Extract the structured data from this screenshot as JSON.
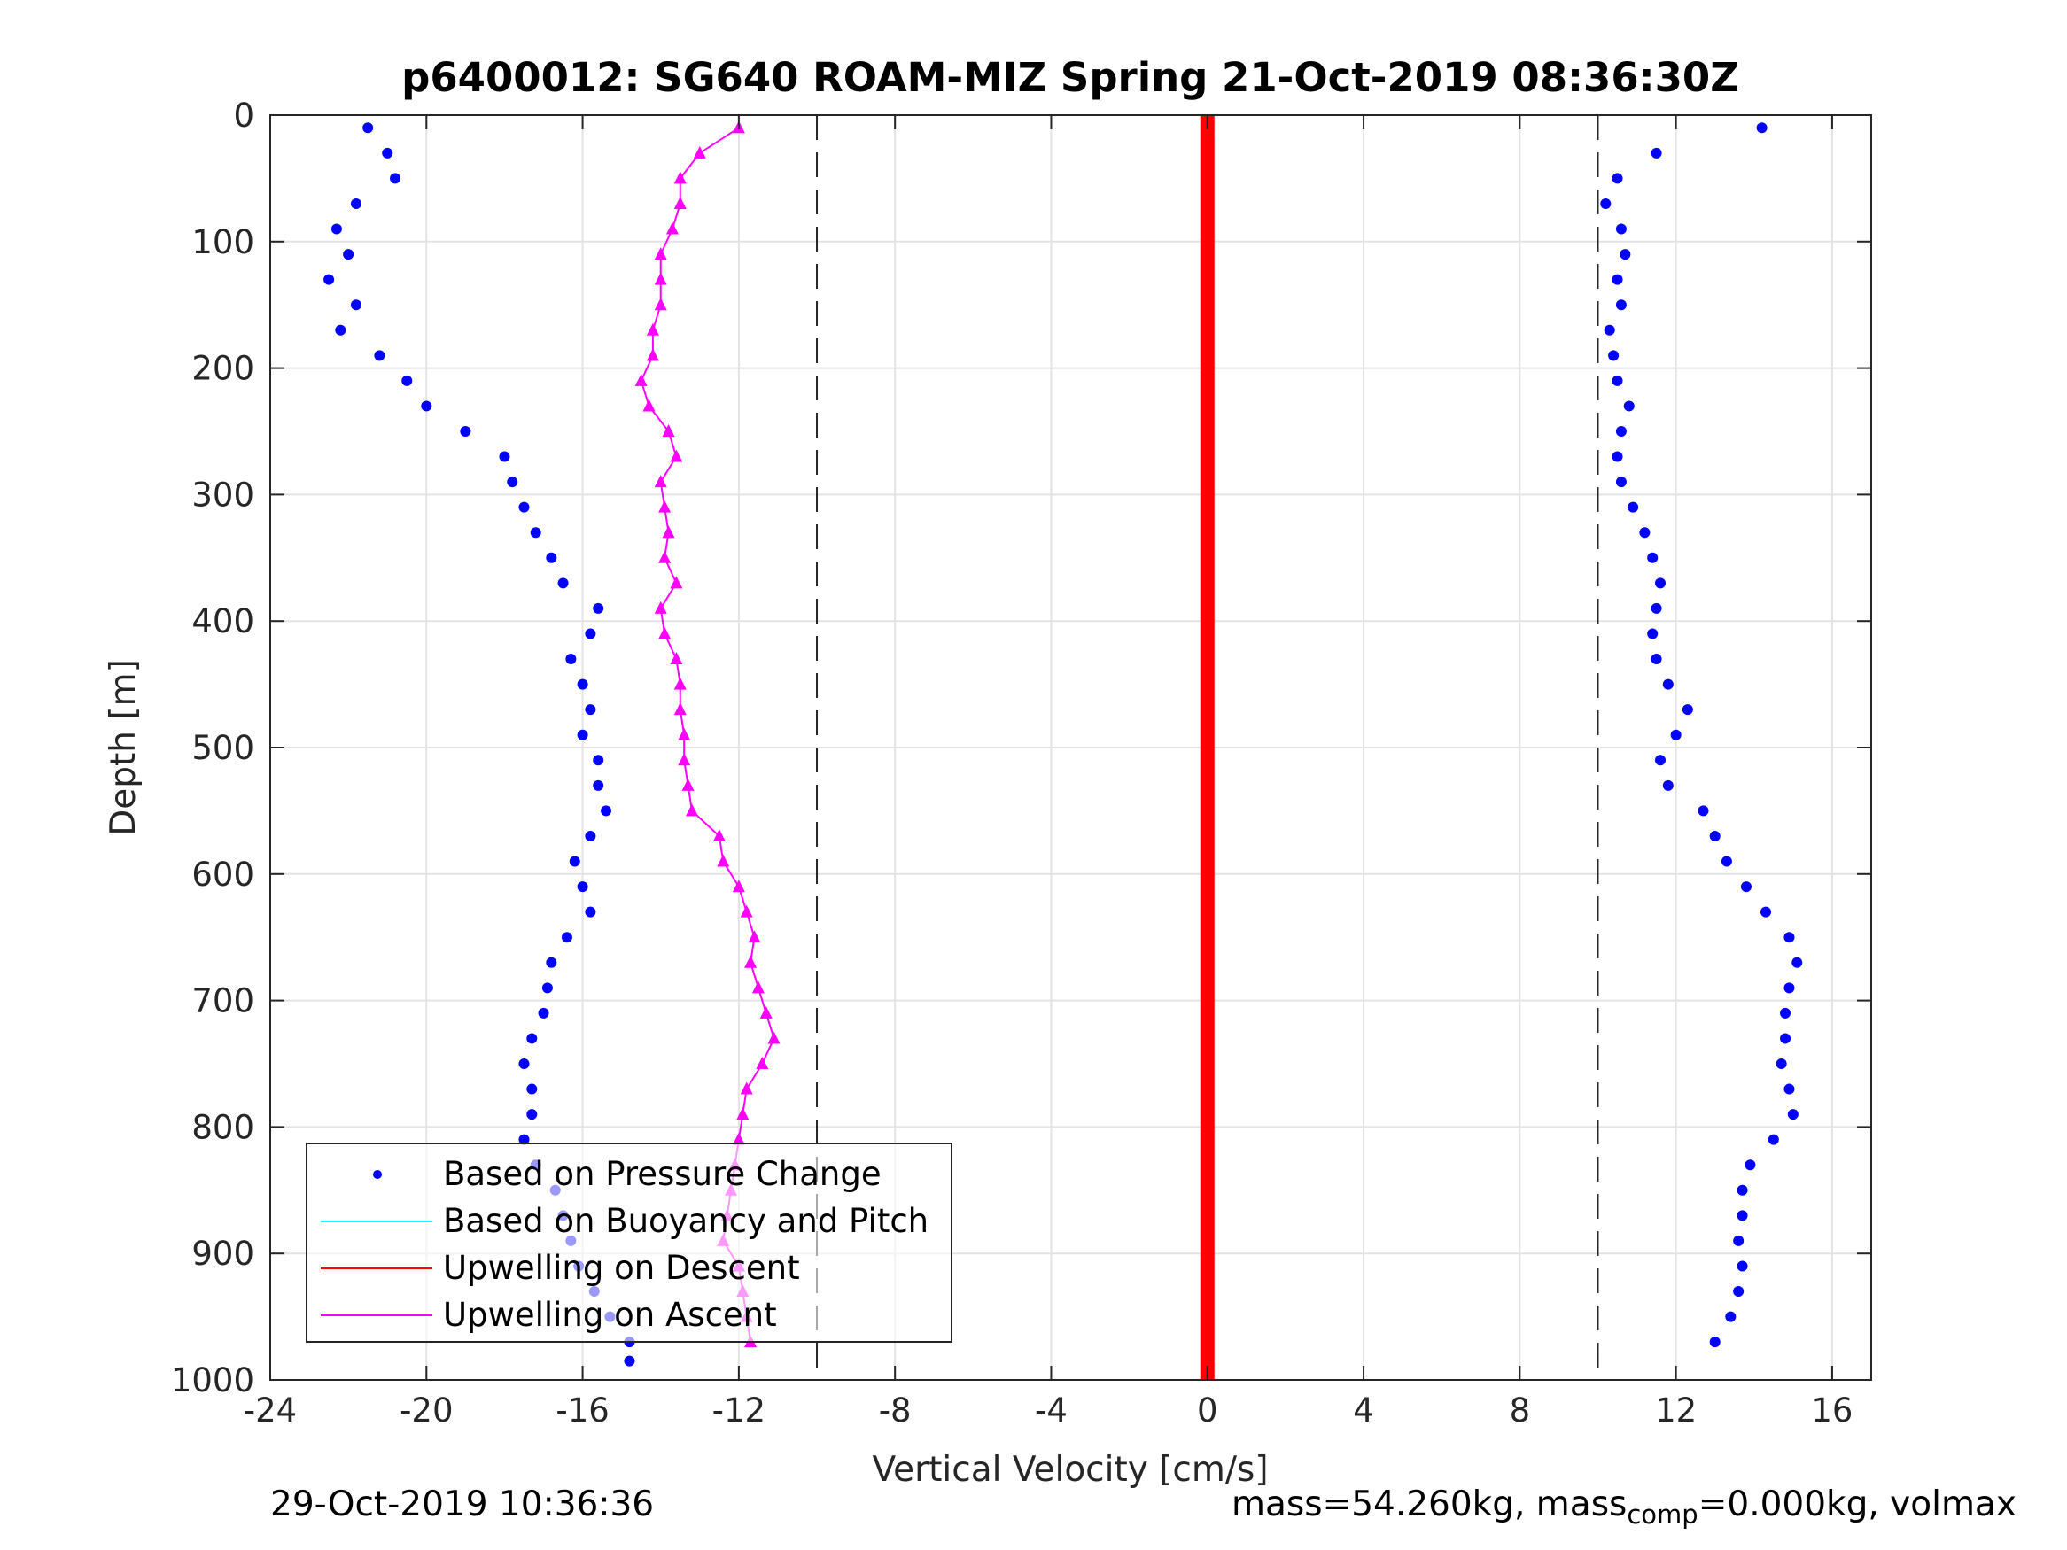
{
  "chart_data": {
    "type": "scatter",
    "title": "p6400012: SG640 ROAM-MIZ Spring 21-Oct-2019 08:36:30Z",
    "xlabel": "Vertical Velocity [cm/s]",
    "ylabel": "Depth [m]",
    "xlim": [
      -24,
      17
    ],
    "ylim": [
      0,
      1000
    ],
    "y_reversed": true,
    "x_ticks": [
      "-24",
      "-20",
      "-16",
      "-12",
      "-8",
      "-4",
      "0",
      "4",
      "8",
      "12",
      "16"
    ],
    "y_ticks": [
      "0",
      "100",
      "200",
      "300",
      "400",
      "500",
      "600",
      "700",
      "800",
      "900",
      "1000"
    ],
    "grid": true,
    "legend_position": "bottom-left",
    "reference_lines": [
      -10,
      10
    ],
    "colors": {
      "pressure": "#0000ff",
      "buoyancy": "#00ffff",
      "descent": "#ff0000",
      "ascent": "#ff00ff"
    },
    "legend": [
      {
        "label": "Based on Pressure Change",
        "marker": "dot",
        "color": "#0000ff"
      },
      {
        "label": "Based on Buoyancy and Pitch",
        "marker": "line",
        "color": "#00ffff"
      },
      {
        "label": "Upwelling on Descent",
        "marker": "line",
        "color": "#ff0000"
      },
      {
        "label": "Upwelling on Ascent",
        "marker": "line",
        "color": "#ff00ff"
      }
    ],
    "series": [
      {
        "name": "Based on Pressure Change (descent)",
        "depth": [
          10,
          30,
          50,
          70,
          90,
          110,
          130,
          150,
          170,
          190,
          210,
          230,
          250,
          270,
          290,
          310,
          330,
          350,
          370,
          390,
          410,
          430,
          450,
          470,
          490,
          510,
          530,
          550,
          570,
          590,
          610,
          630,
          650,
          670,
          690,
          710,
          730,
          750,
          770,
          790,
          810,
          830,
          850,
          870,
          890,
          910,
          930,
          950,
          970,
          985
        ],
        "velocity": [
          -21.5,
          -21.0,
          -20.8,
          -21.8,
          -22.3,
          -22.0,
          -22.5,
          -21.8,
          -22.2,
          -21.2,
          -20.5,
          -20.0,
          -19.0,
          -18.0,
          -17.8,
          -17.5,
          -17.2,
          -16.8,
          -16.5,
          -15.6,
          -15.8,
          -16.3,
          -16.0,
          -15.8,
          -16.0,
          -15.6,
          -15.6,
          -15.4,
          -15.8,
          -16.2,
          -16.0,
          -15.8,
          -16.4,
          -16.8,
          -16.9,
          -17.0,
          -17.3,
          -17.5,
          -17.3,
          -17.3,
          -17.5,
          -17.2,
          -16.7,
          -16.5,
          -16.3,
          -16.1,
          -15.7,
          -15.3,
          -14.8,
          -14.8
        ]
      },
      {
        "name": "Based on Pressure Change (ascent)",
        "depth": [
          10,
          30,
          50,
          70,
          90,
          110,
          130,
          150,
          170,
          190,
          210,
          230,
          250,
          270,
          290,
          310,
          330,
          350,
          370,
          390,
          410,
          430,
          450,
          470,
          490,
          510,
          530,
          550,
          570,
          590,
          610,
          630,
          650,
          670,
          690,
          710,
          730,
          750,
          770,
          790,
          810,
          830,
          850,
          870,
          890,
          910,
          930,
          950,
          970
        ],
        "velocity": [
          14.2,
          11.5,
          10.5,
          10.2,
          10.6,
          10.7,
          10.5,
          10.6,
          10.3,
          10.4,
          10.5,
          10.8,
          10.6,
          10.5,
          10.6,
          10.9,
          11.2,
          11.4,
          11.6,
          11.5,
          11.4,
          11.5,
          11.8,
          12.3,
          12.0,
          11.6,
          11.8,
          12.7,
          13.0,
          13.3,
          13.8,
          14.3,
          14.9,
          15.1,
          14.9,
          14.8,
          14.8,
          14.7,
          14.9,
          15.0,
          14.5,
          13.9,
          13.7,
          13.7,
          13.6,
          13.7,
          13.6,
          13.4,
          13.0
        ]
      },
      {
        "name": "Upwelling on Ascent",
        "depth": [
          10,
          30,
          50,
          70,
          90,
          110,
          130,
          150,
          170,
          190,
          210,
          230,
          250,
          270,
          290,
          310,
          330,
          350,
          370,
          390,
          410,
          430,
          450,
          470,
          490,
          510,
          530,
          550,
          570,
          590,
          610,
          630,
          650,
          670,
          690,
          710,
          730,
          750,
          770,
          790,
          810,
          830,
          850,
          870,
          890,
          910,
          930,
          950,
          970
        ],
        "velocity": [
          -12.0,
          -13.0,
          -13.5,
          -13.5,
          -13.7,
          -14.0,
          -14.0,
          -14.0,
          -14.2,
          -14.2,
          -14.5,
          -14.3,
          -13.8,
          -13.6,
          -14.0,
          -13.9,
          -13.8,
          -13.9,
          -13.6,
          -14.0,
          -13.9,
          -13.6,
          -13.5,
          -13.5,
          -13.4,
          -13.4,
          -13.3,
          -13.2,
          -12.5,
          -12.4,
          -12.0,
          -11.8,
          -11.6,
          -11.7,
          -11.5,
          -11.3,
          -11.1,
          -11.4,
          -11.8,
          -11.9,
          -12.0,
          -12.1,
          -12.2,
          -12.3,
          -12.4,
          -12.0,
          -11.9,
          -11.8,
          -11.7
        ]
      },
      {
        "name": "Upwelling on Descent",
        "depth": [
          0,
          1000
        ],
        "velocity": [
          0,
          0
        ]
      }
    ]
  },
  "footer": {
    "timestamp": "29-Oct-2019 10:36:36",
    "mass_label": "mass=54.260kg, mass",
    "mass_sub": "comp",
    "mass_rest": "=0.000kg, volmax"
  }
}
